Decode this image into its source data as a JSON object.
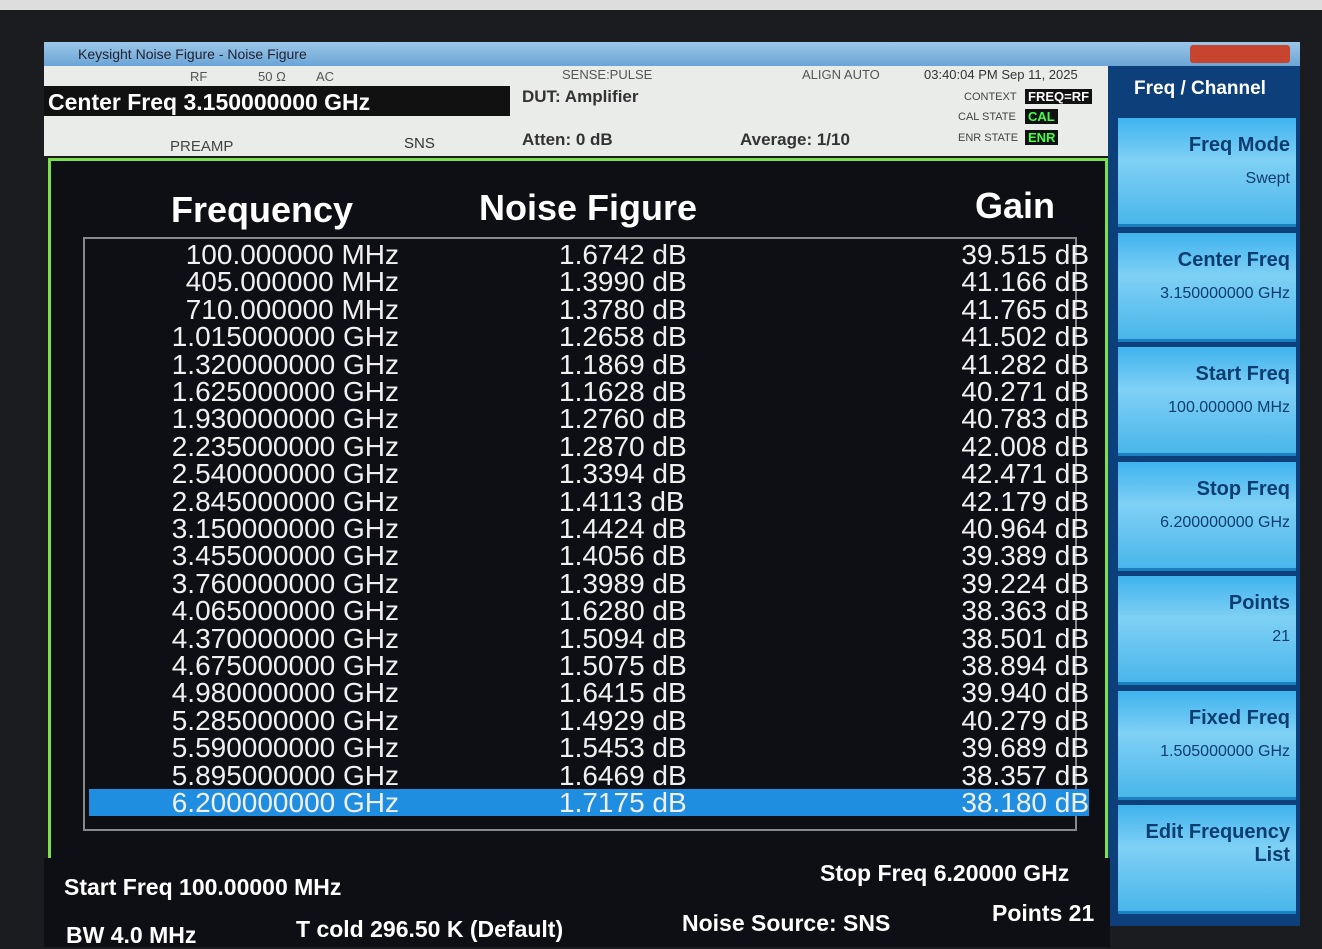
{
  "window": {
    "title": "Keysight Noise Figure - Noise Figure"
  },
  "header": {
    "rf": "RF",
    "impedance": "50 Ω",
    "coupling": "AC",
    "sense": "SENSE:PULSE",
    "align": "ALIGN AUTO",
    "datetime": "03:40:04 PM Sep 11, 2025",
    "center_freq": "Center Freq 3.150000000 GHz",
    "dut": "DUT: Amplifier",
    "context_label": "CONTEXT",
    "context": "FREQ=RF",
    "cal_state_label": "CAL STATE",
    "cal_state": "CAL",
    "enr_state_label": "ENR STATE",
    "enr_state": "ENR",
    "preamp": "PREAMP",
    "sns": "SNS",
    "atten": "Atten: 0 dB",
    "average": "Average: 1/10"
  },
  "table": {
    "columns": [
      "Frequency",
      "Noise Figure",
      "Gain"
    ],
    "rows": [
      [
        "100.000000 MHz",
        "1.6742 dB",
        "39.515 dB"
      ],
      [
        "405.000000 MHz",
        "1.3990 dB",
        "41.166 dB"
      ],
      [
        "710.000000 MHz",
        "1.3780 dB",
        "41.765 dB"
      ],
      [
        "1.015000000 GHz",
        "1.2658 dB",
        "41.502 dB"
      ],
      [
        "1.320000000 GHz",
        "1.1869 dB",
        "41.282 dB"
      ],
      [
        "1.625000000 GHz",
        "1.1628 dB",
        "40.271 dB"
      ],
      [
        "1.930000000 GHz",
        "1.2760 dB",
        "40.783 dB"
      ],
      [
        "2.235000000 GHz",
        "1.2870 dB",
        "42.008 dB"
      ],
      [
        "2.540000000 GHz",
        "1.3394 dB",
        "42.471 dB"
      ],
      [
        "2.845000000 GHz",
        "1.4113 dB",
        "42.179 dB"
      ],
      [
        "3.150000000 GHz",
        "1.4424 dB",
        "40.964 dB"
      ],
      [
        "3.455000000 GHz",
        "1.4056 dB",
        "39.389 dB"
      ],
      [
        "3.760000000 GHz",
        "1.3989 dB",
        "39.224 dB"
      ],
      [
        "4.065000000 GHz",
        "1.6280 dB",
        "38.363 dB"
      ],
      [
        "4.370000000 GHz",
        "1.5094 dB",
        "38.501 dB"
      ],
      [
        "4.675000000 GHz",
        "1.5075 dB",
        "38.894 dB"
      ],
      [
        "4.980000000 GHz",
        "1.6415 dB",
        "39.940 dB"
      ],
      [
        "5.285000000 GHz",
        "1.4929 dB",
        "40.279 dB"
      ],
      [
        "5.590000000 GHz",
        "1.5453 dB",
        "39.689 dB"
      ],
      [
        "5.895000000 GHz",
        "1.6469 dB",
        "38.357 dB"
      ],
      [
        "6.200000000 GHz",
        "1.7175 dB",
        "38.180 dB"
      ]
    ]
  },
  "softkeys": {
    "title": "Freq / Channel",
    "keys": [
      {
        "label": "Freq Mode",
        "value": "Swept"
      },
      {
        "label": "Center Freq",
        "value": "3.150000000 GHz"
      },
      {
        "label": "Start Freq",
        "value": "100.000000 MHz"
      },
      {
        "label": "Stop Freq",
        "value": "6.200000000 GHz"
      },
      {
        "label": "Points",
        "value": "21"
      },
      {
        "label": "Fixed Freq",
        "value": "1.505000000 GHz"
      },
      {
        "label": "Edit Frequency List"
      }
    ]
  },
  "footer": {
    "start": "Start Freq 100.00000 MHz",
    "stop": "Stop Freq 6.20000 GHz",
    "bw": "BW 4.0 MHz",
    "tcold": "T cold 296.50 K (Default)",
    "noise_source": "Noise Source: SNS",
    "points": "Points 21"
  }
}
